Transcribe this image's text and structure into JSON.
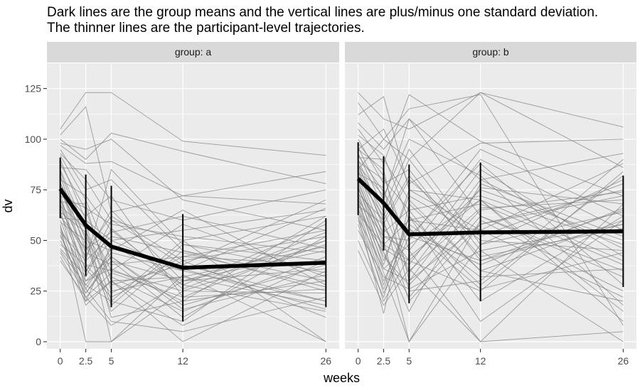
{
  "title_lines": [
    "Dark lines are the group means and the vertical lines are plus/minus one standard deviation.",
    "The thinner lines are the participant-level trajectories."
  ],
  "colors": {
    "panel_bg": "#ebebeb",
    "strip_bg": "#d9d9d9",
    "gridline": "#ffffff",
    "mean_line": "#000000",
    "participant_line": "#7f7f7f",
    "axis_text": "#4d4d4d"
  },
  "chart_data": {
    "type": "line",
    "facet_variable": "group",
    "xlabel": "weeks",
    "ylabel": "dv",
    "x_ticks": [
      0,
      2.5,
      5,
      12,
      26
    ],
    "x_tick_labels": [
      "0",
      "2.5",
      "5",
      "12",
      "26"
    ],
    "y_ticks": [
      0,
      25,
      50,
      75,
      100,
      125
    ],
    "y_tick_labels": [
      "0",
      "25",
      "50",
      "75",
      "100",
      "125"
    ],
    "xlim": [
      -1.3,
      27.3
    ],
    "ylim": [
      -3.5,
      137.5
    ],
    "grid": true,
    "panels": [
      {
        "strip_label": "group: a",
        "group": "a",
        "mean": {
          "x": [
            0,
            2.5,
            5,
            12,
            26
          ],
          "y": [
            75.5,
            57.5,
            47,
            36.5,
            39
          ]
        },
        "sd_bars": [
          {
            "x": 0,
            "low": 61,
            "high": 91
          },
          {
            "x": 2.5,
            "low": 32.5,
            "high": 82.5
          },
          {
            "x": 5,
            "low": 17,
            "high": 77
          },
          {
            "x": 12,
            "low": 10,
            "high": 63
          },
          {
            "x": 26,
            "low": 17,
            "high": 61
          }
        ],
        "trajectories": [
          [
            105,
            123,
            123,
            99,
            92
          ],
          [
            102,
            116,
            64,
            72,
            84
          ],
          [
            100,
            90,
            103,
            94,
            78
          ],
          [
            98,
            95,
            100,
            70,
            55
          ],
          [
            97,
            88,
            89,
            72,
            68
          ],
          [
            95,
            75,
            80,
            45,
            30
          ],
          [
            93,
            80,
            60,
            50,
            62
          ],
          [
            92,
            70,
            40,
            30,
            45
          ],
          [
            90,
            60,
            50,
            35,
            20
          ],
          [
            88,
            65,
            30,
            0,
            35
          ],
          [
            86,
            85,
            70,
            60,
            75
          ],
          [
            85,
            55,
            0,
            25,
            48
          ],
          [
            84,
            50,
            45,
            65,
            28
          ],
          [
            82,
            45,
            62,
            40,
            52
          ],
          [
            80,
            72,
            55,
            28,
            15
          ],
          [
            79,
            40,
            85,
            48,
            40
          ],
          [
            78,
            58,
            20,
            10,
            60
          ],
          [
            77,
            38,
            35,
            58,
            32
          ],
          [
            76,
            62,
            72,
            22,
            50
          ],
          [
            75,
            48,
            15,
            45,
            25
          ],
          [
            74,
            52,
            28,
            38,
            70
          ],
          [
            73,
            30,
            42,
            18,
            38
          ],
          [
            72,
            66,
            58,
            52,
            44
          ],
          [
            71,
            26,
            10,
            5,
            22
          ],
          [
            70,
            44,
            38,
            42,
            55
          ],
          [
            69,
            68,
            25,
            32,
            18
          ],
          [
            68,
            35,
            50,
            55,
            65
          ],
          [
            67,
            56,
            12,
            20,
            30
          ],
          [
            66,
            42,
            65,
            30,
            36
          ],
          [
            65,
            20,
            48,
            28,
            58
          ],
          [
            64,
            54,
            32,
            15,
            42
          ],
          [
            63,
            36,
            22,
            40,
            12
          ],
          [
            62,
            46,
            54,
            62,
            46
          ],
          [
            61,
            60,
            35,
            25,
            24
          ],
          [
            60,
            28,
            44,
            35,
            66
          ],
          [
            59,
            50,
            18,
            48,
            34
          ],
          [
            58,
            0,
            0,
            33,
            0
          ],
          [
            57,
            24,
            40,
            12,
            52
          ],
          [
            56,
            34,
            60,
            38,
            20
          ],
          [
            55,
            18,
            30,
            8,
            40
          ],
          [
            54,
            40,
            52,
            44,
            27
          ],
          [
            53,
            22,
            8,
            30,
            50
          ],
          [
            52,
            30,
            36,
            20,
            62
          ],
          [
            50,
            26,
            46,
            36,
            16
          ],
          [
            48,
            38,
            24,
            42,
            38
          ],
          [
            46,
            32,
            56,
            26,
            54
          ],
          [
            45,
            28,
            20,
            50,
            0
          ],
          [
            44,
            24,
            42,
            16,
            33
          ],
          [
            42,
            20,
            30,
            32,
            47
          ],
          [
            40,
            22,
            34,
            22,
            26
          ]
        ]
      },
      {
        "strip_label": "group: b",
        "group": "b",
        "mean": {
          "x": [
            0,
            2.5,
            5,
            12,
            26
          ],
          "y": [
            80.5,
            68.5,
            53,
            54,
            54.5
          ]
        },
        "sd_bars": [
          {
            "x": 0,
            "low": 62.5,
            "high": 98.5
          },
          {
            "x": 2.5,
            "low": 45,
            "high": 91.5
          },
          {
            "x": 5,
            "low": 19,
            "high": 87.5
          },
          {
            "x": 12,
            "low": 20,
            "high": 88.5
          },
          {
            "x": 26,
            "low": 27,
            "high": 82
          }
        ],
        "trajectories": [
          [
            123,
            110,
            105,
            123,
            106
          ],
          [
            118,
            100,
            90,
            123,
            86
          ],
          [
            112,
            121,
            75,
            70,
            40
          ],
          [
            108,
            95,
            110,
            80,
            93
          ],
          [
            105,
            88,
            122,
            99,
            72
          ],
          [
            102,
            92,
            60,
            55,
            88
          ],
          [
            100,
            78,
            85,
            40,
            65
          ],
          [
            98,
            82,
            45,
            90,
            55
          ],
          [
            96,
            70,
            110,
            62,
            35
          ],
          [
            95,
            85,
            30,
            76,
            68
          ],
          [
            93,
            66,
            95,
            48,
            80
          ],
          [
            92,
            74,
            52,
            88,
            28
          ],
          [
            91,
            90,
            70,
            35,
            60
          ],
          [
            90,
            60,
            20,
            58,
            75
          ],
          [
            89,
            80,
            65,
            72,
            48
          ],
          [
            88,
            56,
            40,
            25,
            84
          ],
          [
            87,
            72,
            100,
            82,
            18
          ],
          [
            86,
            64,
            35,
            66,
            70
          ],
          [
            85,
            58,
            80,
            50,
            45
          ],
          [
            84,
            52,
            50,
            95,
            62
          ],
          [
            83,
            76,
            25,
            30,
            90
          ],
          [
            82,
            48,
            60,
            68,
            38
          ],
          [
            81,
            62,
            90,
            45,
            58
          ],
          [
            80,
            44,
            15,
            78,
            52
          ],
          [
            79,
            68,
            55,
            38,
            66
          ],
          [
            78,
            50,
            0,
            60,
            25
          ],
          [
            77,
            40,
            72,
            52,
            78
          ],
          [
            76,
            46,
            38,
            85,
            42
          ],
          [
            75,
            54,
            65,
            20,
            62
          ],
          [
            74,
            36,
            48,
            70,
            10
          ],
          [
            73,
            60,
            82,
            42,
            56
          ],
          [
            72,
            42,
            28,
            65,
            74
          ],
          [
            71,
            30,
            58,
            32,
            36
          ],
          [
            70,
            52,
            45,
            0,
            68
          ],
          [
            69,
            38,
            75,
            55,
            22
          ],
          [
            68,
            34,
            0,
            48,
            64
          ],
          [
            67,
            58,
            34,
            80,
            46
          ],
          [
            66,
            28,
            62,
            28,
            82
          ],
          [
            65,
            44,
            22,
            62,
            32
          ],
          [
            64,
            24,
            52,
            40,
            58
          ],
          [
            63,
            48,
            40,
            75,
            50
          ],
          [
            62,
            14,
            68,
            35,
            20
          ],
          [
            61,
            36,
            30,
            58,
            72
          ],
          [
            60,
            26,
            56,
            26,
            44
          ],
          [
            58,
            20,
            42,
            70,
            15
          ],
          [
            55,
            32,
            26,
            45,
            0
          ],
          [
            50,
            22,
            62,
            10,
            60
          ],
          [
            45,
            18,
            36,
            0,
            5
          ],
          [
            85,
            100,
            115,
            122,
            8
          ],
          [
            95,
            105,
            78,
            98,
            100
          ]
        ]
      }
    ]
  }
}
